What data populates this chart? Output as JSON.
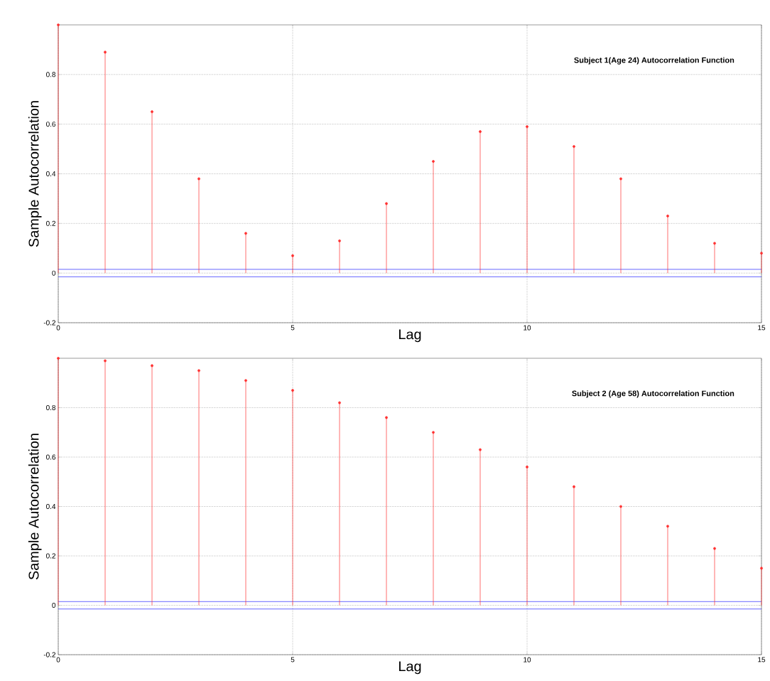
{
  "chart_data": [
    {
      "type": "lollipop",
      "x": [
        0,
        1,
        2,
        3,
        4,
        5,
        6,
        7,
        8,
        9,
        10,
        11,
        12,
        13,
        14,
        15
      ],
      "values": [
        1,
        0.89,
        0.65,
        0.38,
        0.16,
        0.07,
        0.13,
        0.28,
        0.45,
        0.57,
        0.59,
        0.51,
        0.38,
        0.23,
        0.12,
        0.08
      ],
      "color": "#ff3030",
      "marker": "circle",
      "xlabel": "Lag",
      "ylabel": "Sample Autocorrelation",
      "annotations": [
        "Subject 1(Age 24) Autocorrelation Function"
      ],
      "xlim": [
        0,
        15
      ],
      "ylim": [
        -0.2,
        1
      ],
      "xticks": [
        0,
        5,
        10,
        15
      ],
      "yticks": [
        -0.2,
        0,
        0.2,
        0.4,
        0.6,
        0.8
      ],
      "grid": true,
      "ref_lines": [
        {
          "axis": "y",
          "value": 0.015,
          "color": "#4040ff"
        },
        {
          "axis": "y",
          "value": -0.015,
          "color": "#4040ff"
        }
      ]
    },
    {
      "type": "lollipop",
      "x": [
        0,
        1,
        2,
        3,
        4,
        5,
        6,
        7,
        8,
        9,
        10,
        11,
        12,
        13,
        14,
        15
      ],
      "values": [
        1,
        0.99,
        0.97,
        0.95,
        0.91,
        0.87,
        0.82,
        0.76,
        0.7,
        0.63,
        0.56,
        0.48,
        0.4,
        0.32,
        0.23,
        0.15
      ],
      "color": "#ff3030",
      "marker": "circle",
      "xlabel": "Lag",
      "ylabel": "Sample Autocorrelation",
      "annotations": [
        "Subject 2 (Age 58) Autocorrelation Function"
      ],
      "xlim": [
        0,
        15
      ],
      "ylim": [
        -0.2,
        1
      ],
      "xticks": [
        0,
        5,
        10,
        15
      ],
      "yticks": [
        -0.2,
        0,
        0.2,
        0.4,
        0.6,
        0.8
      ],
      "grid": true,
      "ref_lines": [
        {
          "axis": "y",
          "value": 0.015,
          "color": "#4040ff"
        },
        {
          "axis": "y",
          "value": -0.015,
          "color": "#4040ff"
        }
      ]
    }
  ]
}
